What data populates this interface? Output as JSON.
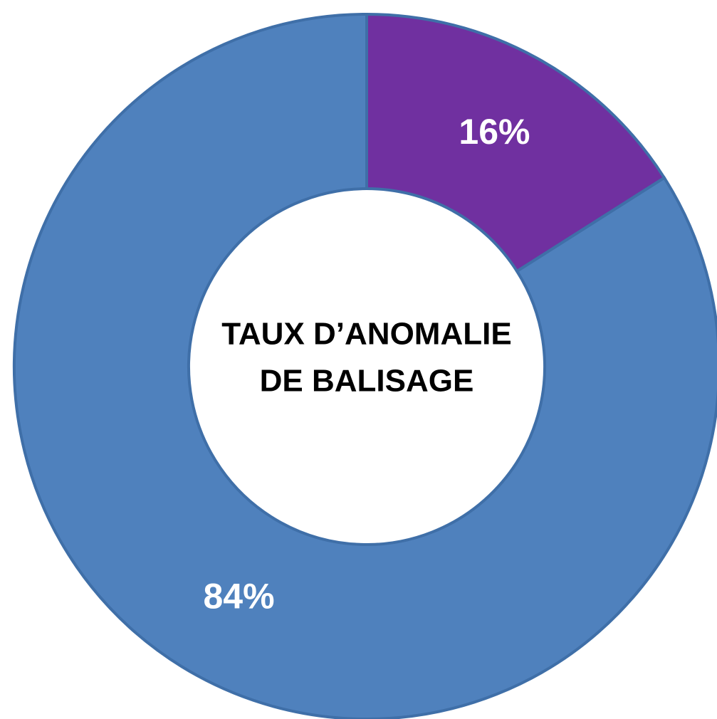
{
  "chart_data": {
    "type": "donut",
    "center_text": [
      "TAUX D’ANOMALIE",
      "DE BALISAGE"
    ],
    "values": [
      16,
      84
    ],
    "value_labels": [
      "16%",
      "84%"
    ],
    "colors": [
      "#7030a0",
      "#4f81bd"
    ]
  }
}
